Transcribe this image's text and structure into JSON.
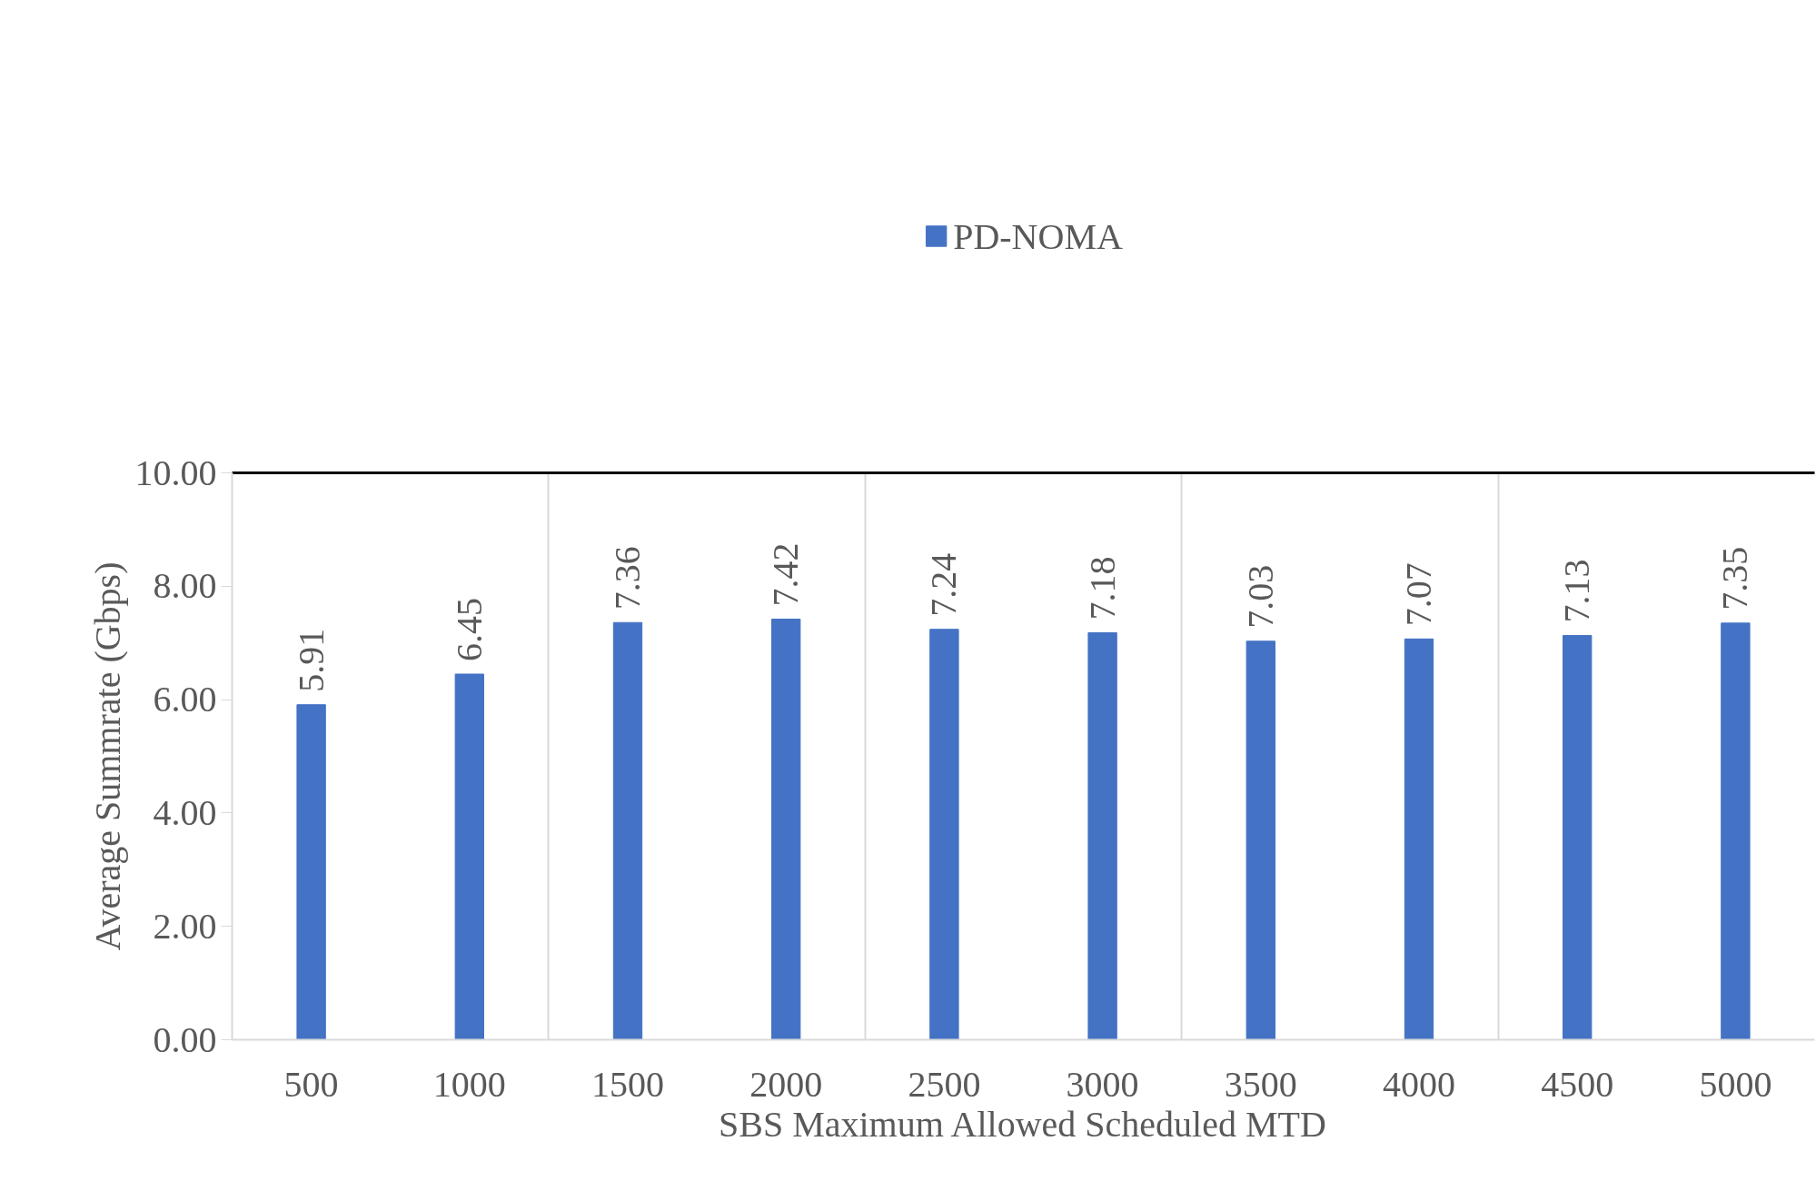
{
  "chart_data": {
    "type": "bar",
    "xlabel": "SBS Maximum Allowed Scheduled MTD",
    "ylabel": "Average Summrate (Gbps)",
    "categories": [
      "500",
      "1000",
      "1500",
      "2000",
      "2500",
      "3000",
      "3500",
      "4000",
      "4500",
      "5000"
    ],
    "series": [
      {
        "name": "PD-NOMA",
        "color": "#4472c4",
        "values": [
          5.91,
          6.45,
          7.36,
          7.42,
          7.24,
          7.18,
          7.03,
          7.07,
          7.13,
          7.35
        ]
      }
    ],
    "value_labels": [
      "5.91",
      "6.45",
      "7.36",
      "7.42",
      "7.24",
      "7.18",
      "7.03",
      "7.07",
      "7.13",
      "7.35"
    ],
    "ylim": [
      0,
      10
    ],
    "yticks": [
      {
        "value": 0,
        "label": "0.00"
      },
      {
        "value": 2,
        "label": "2.00"
      },
      {
        "value": 4,
        "label": "4.00"
      },
      {
        "value": 6,
        "label": "6.00"
      },
      {
        "value": 8,
        "label": "8.00"
      },
      {
        "value": 10,
        "label": "10.00"
      }
    ],
    "grid": "x",
    "legend": "top"
  }
}
